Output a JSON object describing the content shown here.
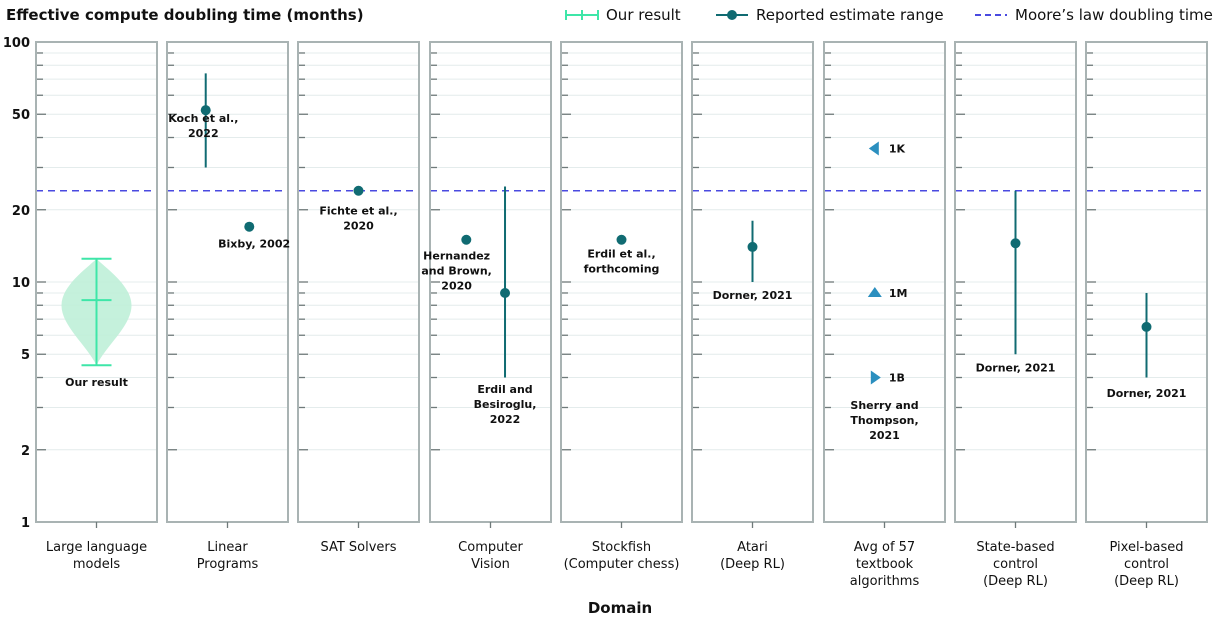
{
  "chart_data": {
    "type": "scatter",
    "title": "Effective compute doubling time (months)",
    "xlabel": "Domain",
    "yscale": "log",
    "ylim": [
      1,
      100
    ],
    "yticks": [
      1,
      2,
      5,
      10,
      20,
      50,
      100
    ],
    "grid": true,
    "legend_position": "top",
    "legend": [
      {
        "name": "Our result",
        "kind": "range-with-mean",
        "color": "#3ee6a8"
      },
      {
        "name": "Reported estimate range",
        "kind": "point-range",
        "color": "#106b72"
      },
      {
        "name": "Moore’s law doubling time",
        "kind": "dashed-line",
        "color": "#4a4ae0"
      }
    ],
    "moores_law": 24,
    "panels": [
      {
        "category": [
          "Large language",
          "models"
        ],
        "violin": {
          "min": 4.5,
          "max": 12.5,
          "mean": 8.4,
          "label": "Our result"
        }
      },
      {
        "category": [
          "Linear",
          "Programs"
        ],
        "estimates": [
          {
            "label": [
              "Koch et al.,",
              "2022"
            ],
            "value": 52,
            "low": 30,
            "high": 74
          },
          {
            "label": [
              "Bixby, 2002"
            ],
            "value": 17
          }
        ]
      },
      {
        "category": [
          "SAT Solvers"
        ],
        "estimates": [
          {
            "label": [
              "Fichte et al.,",
              "2020"
            ],
            "value": 24
          }
        ]
      },
      {
        "category": [
          "Computer",
          "Vision"
        ],
        "estimates": [
          {
            "label": [
              "Hernandez",
              "and Brown,",
              "2020"
            ],
            "value": 15
          },
          {
            "label": [
              "Erdil and",
              "Besiroglu,",
              "2022"
            ],
            "value": 9,
            "low": 4,
            "high": 25
          }
        ]
      },
      {
        "category": [
          "Stockfish",
          "(Computer chess)"
        ],
        "estimates": [
          {
            "label": [
              "Erdil et al.,",
              "forthcoming"
            ],
            "value": 15
          }
        ]
      },
      {
        "category": [
          "Atari",
          "(Deep RL)"
        ],
        "estimates": [
          {
            "label": [
              "Dorner, 2021"
            ],
            "value": 14,
            "low": 10,
            "high": 18
          }
        ]
      },
      {
        "category": [
          "Avg of 57",
          "textbook",
          "algorithms"
        ],
        "estimates": [
          {
            "label": [
              "1K"
            ],
            "value": 36,
            "marker": "triangle-left"
          },
          {
            "label": [
              "1M"
            ],
            "value": 9,
            "marker": "triangle-up"
          },
          {
            "label": [
              "1B"
            ],
            "value": 4,
            "marker": "triangle-right"
          }
        ],
        "note": [
          "Sherry and",
          "Thompson,",
          "2021"
        ]
      },
      {
        "category": [
          "State-based",
          "control",
          "(Deep RL)"
        ],
        "estimates": [
          {
            "label": [
              "Dorner, 2021"
            ],
            "value": 14.5,
            "low": 5,
            "high": 24
          }
        ]
      },
      {
        "category": [
          "Pixel-based",
          "control",
          "(Deep RL)"
        ],
        "estimates": [
          {
            "label": [
              "Dorner, 2021"
            ],
            "value": 6.5,
            "low": 4,
            "high": 9
          }
        ]
      }
    ]
  }
}
